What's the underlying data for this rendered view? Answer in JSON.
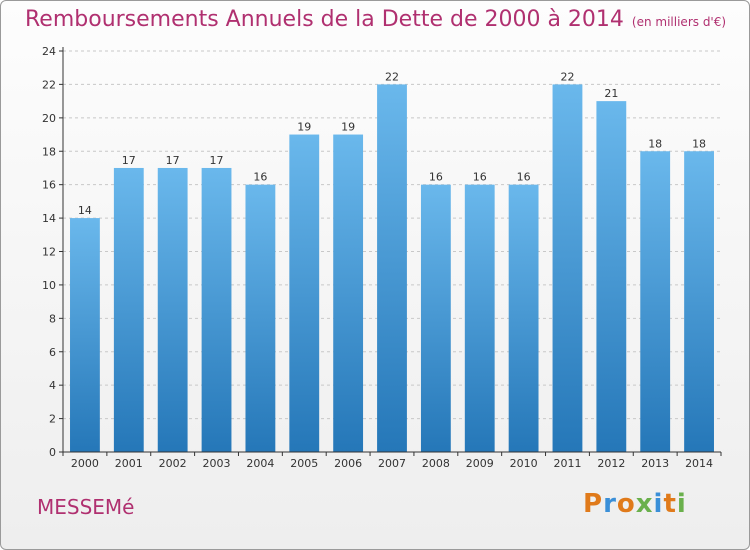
{
  "header": {
    "title": "Remboursements Annuels de la Dette de 2000 à 2014",
    "subtitle": "(en milliers d'€)"
  },
  "footer": {
    "commune": "MESSEMé",
    "brand_letters": [
      {
        "ch": "P",
        "color": "#e07a1a"
      },
      {
        "ch": "r",
        "color": "#3a8fd8"
      },
      {
        "ch": "o",
        "color": "#e07a1a"
      },
      {
        "ch": "x",
        "color": "#6ab04c"
      },
      {
        "ch": "i",
        "color": "#3a8fd8"
      },
      {
        "ch": "t",
        "color": "#e07a1a"
      },
      {
        "ch": "i",
        "color": "#6ab04c"
      }
    ]
  },
  "colors": {
    "title": "#b03070",
    "bar_light": "#6ab8ec",
    "bar_dark": "#2577b8",
    "grid": "#c8c8c8",
    "axis": "#333333"
  },
  "chart_data": {
    "type": "bar",
    "title": "Remboursements Annuels de la Dette de 2000 à 2014",
    "subtitle": "(en milliers d'€)",
    "xlabel": "",
    "ylabel": "",
    "categories": [
      "2000",
      "2001",
      "2002",
      "2003",
      "2004",
      "2005",
      "2006",
      "2007",
      "2008",
      "2009",
      "2010",
      "2011",
      "2012",
      "2013",
      "2014"
    ],
    "values": [
      14,
      17,
      17,
      17,
      16,
      19,
      19,
      22,
      16,
      16,
      16,
      22,
      21,
      18,
      18
    ],
    "ylim": [
      0,
      24
    ],
    "yticks": [
      0,
      2,
      4,
      6,
      8,
      10,
      12,
      14,
      16,
      18,
      20,
      22,
      24
    ],
    "grid": true,
    "data_labels": true
  }
}
